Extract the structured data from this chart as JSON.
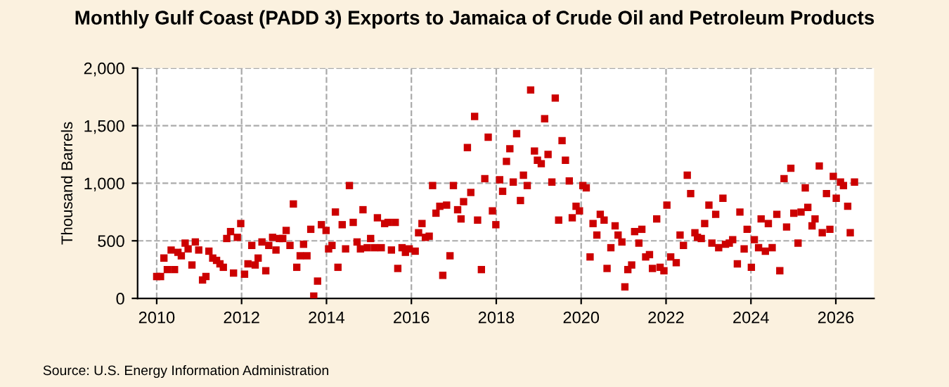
{
  "chart_data": {
    "type": "scatter",
    "title": "Monthly Gulf Coast (PADD 3) Exports to Jamaica of Crude Oil and Petroleum Products",
    "ylabel": "Thousand Barrels",
    "color": "#cc0000",
    "marker": "square",
    "grid": true,
    "xlim": [
      2009.55,
      2026.9
    ],
    "ylim": [
      0,
      2000
    ],
    "xticks": [
      2010,
      2012,
      2014,
      2016,
      2018,
      2020,
      2022,
      2024,
      2026
    ],
    "yticks": [
      0,
      500,
      {
        "value": 1000,
        "label": "1,000"
      },
      {
        "value": 1500,
        "label": "1,500"
      },
      {
        "value": 2000,
        "label": "2,000"
      }
    ],
    "annotations": [
      "Source: U.S. Energy Information Administration"
    ],
    "x": [
      2010.0,
      2010.09,
      2010.17,
      2010.25,
      2010.34,
      2010.42,
      2010.5,
      2010.58,
      2010.67,
      2010.74,
      2010.83,
      2010.91,
      2010.99,
      2011.08,
      2011.16,
      2011.23,
      2011.32,
      2011.41,
      2011.49,
      2011.57,
      2011.65,
      2011.74,
      2011.81,
      2011.9,
      2011.98,
      2012.07,
      2012.15,
      2012.24,
      2012.32,
      2012.39,
      2012.48,
      2012.57,
      2012.64,
      2012.73,
      2012.81,
      2012.89,
      2012.97,
      2013.05,
      2013.14,
      2013.22,
      2013.3,
      2013.38,
      2013.46,
      2013.54,
      2013.63,
      2013.7,
      2013.79,
      2013.88,
      2013.99,
      2014.05,
      2014.13,
      2014.21,
      2014.27,
      2014.37,
      2014.45,
      2014.54,
      2014.63,
      2014.72,
      2014.8,
      2014.86,
      2014.96,
      2015.04,
      2015.13,
      2015.2,
      2015.29,
      2015.37,
      2015.45,
      2015.53,
      2015.62,
      2015.68,
      2015.78,
      2015.86,
      2015.95,
      2016.09,
      2016.17,
      2016.25,
      2016.33,
      2016.42,
      2016.5,
      2016.58,
      2016.67,
      2016.74,
      2016.83,
      2016.91,
      2016.99,
      2017.09,
      2017.17,
      2017.23,
      2017.32,
      2017.4,
      2017.49,
      2017.56,
      2017.65,
      2017.73,
      2017.81,
      2017.91,
      2017.99,
      2018.08,
      2018.15,
      2018.24,
      2018.32,
      2018.4,
      2018.48,
      2018.57,
      2018.64,
      2018.73,
      2018.81,
      2018.9,
      2018.97,
      2019.06,
      2019.14,
      2019.22,
      2019.31,
      2019.39,
      2019.47,
      2019.55,
      2019.63,
      2019.72,
      2019.79,
      2019.88,
      2019.96,
      2020.04,
      2020.12,
      2020.21,
      2020.28,
      2020.37,
      2020.45,
      2020.54,
      2020.61,
      2020.7,
      2020.8,
      2020.87,
      2020.96,
      2021.03,
      2021.1,
      2021.19,
      2021.26,
      2021.36,
      2021.43,
      2021.52,
      2021.61,
      2021.68,
      2021.78,
      2021.86,
      2021.95,
      2022.02,
      2022.11,
      2022.24,
      2022.33,
      2022.41,
      2022.5,
      2022.58,
      2022.68,
      2022.74,
      2022.83,
      2022.91,
      2023.01,
      2023.08,
      2023.17,
      2023.24,
      2023.34,
      2023.4,
      2023.49,
      2023.57,
      2023.68,
      2023.74,
      2023.84,
      2023.91,
      2024.01,
      2024.08,
      2024.18,
      2024.24,
      2024.34,
      2024.41,
      2024.5,
      2024.61,
      2024.68,
      2024.78,
      2024.84,
      2024.94,
      2025.01,
      2025.11,
      2025.18,
      2025.28,
      2025.34,
      2025.44,
      2025.51,
      2025.61,
      2025.68,
      2025.78,
      2025.86,
      2025.94,
      2026.01,
      2026.11,
      2026.18,
      2026.28,
      2026.34,
      2026.44
    ],
    "values": [
      190,
      190,
      350,
      250,
      420,
      250,
      400,
      370,
      480,
      430,
      290,
      490,
      420,
      160,
      190,
      410,
      350,
      330,
      300,
      270,
      520,
      580,
      220,
      530,
      650,
      210,
      300,
      460,
      290,
      350,
      490,
      240,
      460,
      530,
      420,
      520,
      520,
      590,
      460,
      820,
      270,
      370,
      470,
      370,
      600,
      20,
      150,
      640,
      590,
      430,
      460,
      750,
      270,
      640,
      430,
      980,
      660,
      490,
      430,
      770,
      440,
      520,
      440,
      700,
      440,
      650,
      660,
      420,
      660,
      260,
      440,
      400,
      430,
      410,
      570,
      650,
      530,
      540,
      980,
      740,
      800,
      200,
      810,
      370,
      980,
      770,
      690,
      840,
      1310,
      920,
      1580,
      680,
      250,
      1040,
      1400,
      760,
      640,
      1030,
      930,
      1190,
      1300,
      1010,
      1430,
      850,
      1070,
      980,
      1810,
      1280,
      1200,
      1170,
      1560,
      1250,
      1010,
      1740,
      680,
      1370,
      1200,
      1020,
      700,
      800,
      760,
      980,
      960,
      360,
      650,
      550,
      730,
      680,
      260,
      440,
      630,
      550,
      490,
      100,
      250,
      290,
      580,
      480,
      600,
      360,
      380,
      260,
      690,
      270,
      240,
      810,
      360,
      310,
      550,
      460,
      1070,
      910,
      570,
      530,
      520,
      650,
      810,
      480,
      730,
      440,
      870,
      470,
      480,
      510,
      300,
      750,
      430,
      600,
      270,
      510,
      440,
      690,
      410,
      650,
      440,
      730,
      240,
      1040,
      620,
      1130,
      740,
      480,
      750,
      960,
      790,
      630,
      690,
      1150,
      570,
      910,
      600,
      1060,
      870,
      1010,
      980,
      800,
      570,
      1010
    ]
  }
}
